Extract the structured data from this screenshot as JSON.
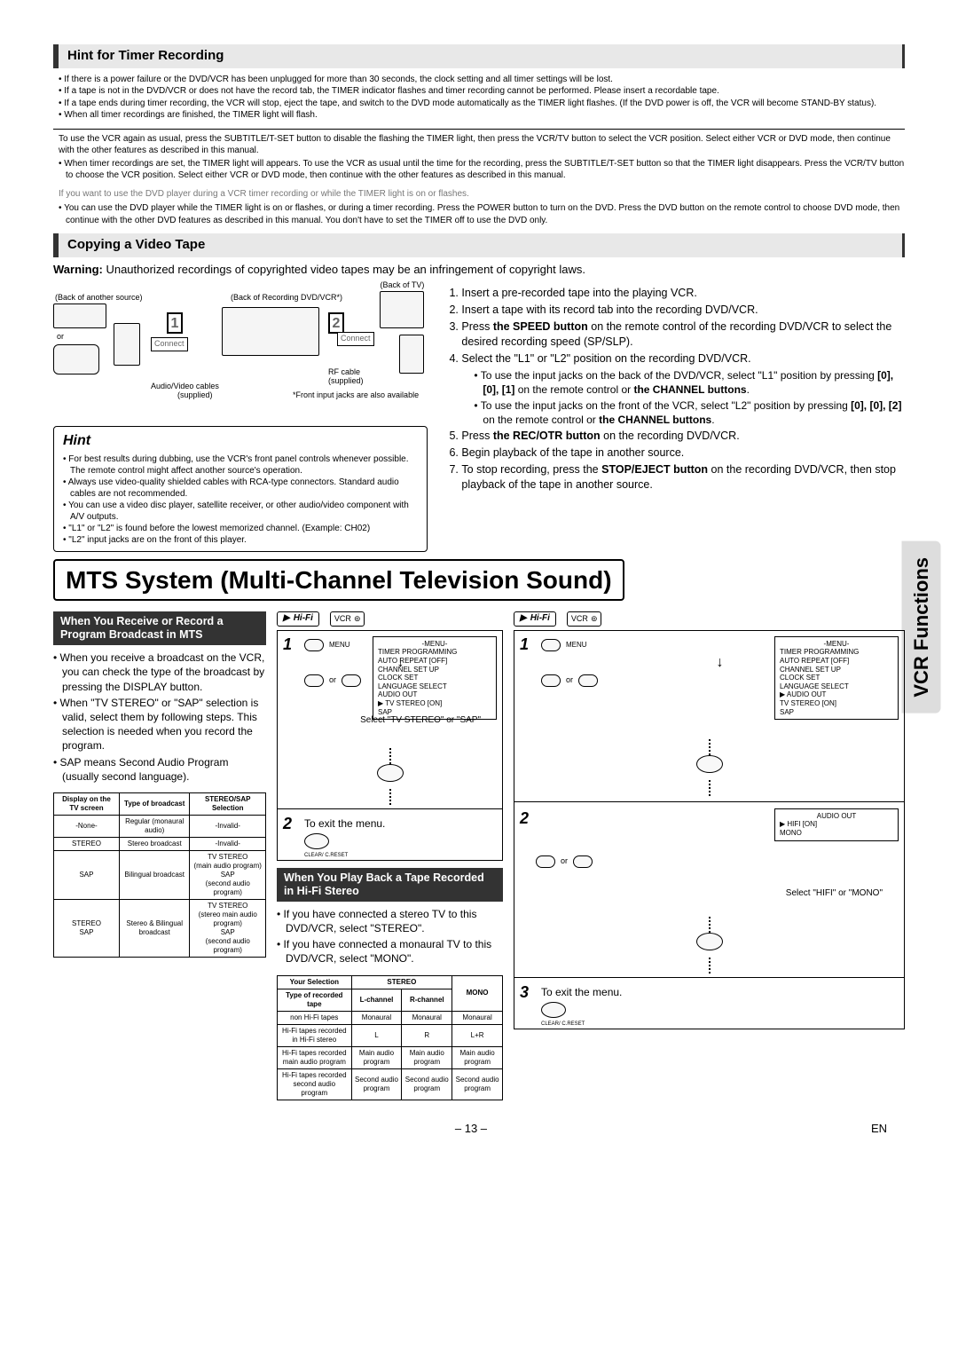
{
  "page_number": "– 13 –",
  "lang_code": "EN",
  "sidebar_tab": "VCR Functions",
  "timer": {
    "header": "Hint for Timer Recording",
    "bullets": [
      "If there is a power failure or the DVD/VCR has been unplugged for more than 30 seconds, the clock setting and all timer settings will be lost.",
      "If a tape is not in the DVD/VCR or does not have the record tab, the TIMER indicator flashes and timer recording cannot be performed. Please insert a recordable tape.",
      "If a tape ends during timer recording, the VCR will stop, eject the tape, and switch to the DVD mode automatically as the TIMER light flashes. (If the DVD power is off, the VCR will become STAND-BY status).",
      "When all timer recordings are finished, the TIMER light will flash."
    ],
    "para1": "To use the VCR again as usual, press the SUBTITLE/T-SET button to disable the flashing the TIMER light, then press the VCR/TV button to select the VCR position. Select either VCR or DVD mode, then continue with the other features as described in this manual.",
    "bullets2": [
      "When timer recordings are set, the TIMER light will appears. To use the VCR as usual until the time for the recording, press the SUBTITLE/T-SET button so that the TIMER light disappears. Press the VCR/TV button to choose the VCR position. Select either VCR or DVD mode, then continue with the other features as described in this manual."
    ],
    "gray_note": "If you want to use the DVD player during a VCR timer recording or while the TIMER light is on or flashes.",
    "bullets3": [
      "You can use the DVD player while the TIMER light is on or flashes, or during a timer recording. Press the POWER button to turn on the DVD. Press the DVD button on the remote control to choose DVD mode, then continue with the other DVD features as described in this manual. You don't have to set the TIMER off to use the DVD only."
    ]
  },
  "copying": {
    "header": "Copying a Video Tape",
    "warning_label": "Warning:",
    "warning_text": " Unauthorized recordings of copyrighted video tapes may be an infringement of copyright laws.",
    "diagram": {
      "back_source": "(Back of another source)",
      "back_rec": "(Back of Recording DVD/VCR*)",
      "back_tv": "(Back of TV)",
      "or": "or",
      "connect": "Connect",
      "av_cables": "Audio/Video cables",
      "supplied": "(supplied)",
      "rf_cable": "RF cable",
      "front_note": "*Front input jacks are also available"
    },
    "steps_html": [
      "Insert a pre-recorded tape into the playing VCR.",
      "Insert a tape with its record tab into the recording DVD/VCR.",
      "Press <b>the SPEED button</b> on the remote control of the recording DVD/VCR to select the desired recording speed (SP/SLP).",
      "Select the \"L1\" or \"L2\" position on the recording DVD/VCR.",
      "Press <b>the REC/OTR button</b> on the recording DVD/VCR.",
      "Begin playback of the tape in another source.",
      "To stop recording, press the <b>STOP/EJECT button</b> on the recording DVD/VCR, then stop playback of the tape in another source."
    ],
    "sub4": [
      "To use the input jacks on the back of the DVD/VCR, select \"L1\" position by pressing <b>[0], [0], [1]</b> on the remote control or <b>the CHANNEL buttons</b>.",
      "To use the input jacks on the front of the VCR, select \"L2\" position by pressing <b>[0], [0], [2]</b> on the remote control or <b>the CHANNEL buttons</b>."
    ],
    "hint_header": "Hint",
    "hint_bullets": [
      "For best results during dubbing, use the VCR's front panel controls whenever possible. The remote control might affect another source's operation.",
      "Always use video-quality shielded cables with RCA-type connectors. Standard audio cables are not recommended.",
      "You can use a video disc player, satellite receiver, or other audio/video component with A/V outputs.",
      "\"L1\" or \"L2\" is found before the lowest memorized channel.  (Example: CH02)",
      "\"L2\" input jacks are on the front of this player."
    ]
  },
  "mts": {
    "title": "MTS System (Multi-Channel Television Sound)",
    "sub1_header": "When You Receive or Record a Program Broadcast in MTS",
    "sub1_bullets": [
      "When you receive a broadcast on the VCR, you can check the type of the broadcast by pressing the DISPLAY button.",
      "When \"TV STEREO\" or \"SAP\" selection is valid, select them by following steps. This selection is needed when you record the program.",
      "SAP means Second Audio Program (usually second language)."
    ],
    "table1": {
      "headers": [
        "Display on the TV screen",
        "Type of broadcast",
        "STEREO/SAP Selection"
      ],
      "rows": [
        [
          "-None-",
          "Regular (monaural audio)",
          "-Invalid-"
        ],
        [
          "STEREO",
          "Stereo broadcast",
          "-Invalid-"
        ],
        [
          "SAP",
          "Bilingual broadcast",
          "TV STEREO\n(main audio program)\nSAP\n(second audio program)"
        ],
        [
          "STEREO\nSAP",
          "Stereo & Bilingual broadcast",
          "TV STEREO\n(stereo main audio program)\nSAP\n(second audio program)"
        ]
      ]
    },
    "proc1": {
      "menu_title": "-MENU-",
      "menu_items": [
        "TIMER PROGRAMMING",
        "AUTO REPEAT   [OFF]",
        "CHANNEL SET UP",
        "CLOCK SET",
        "LANGUAGE SELECT",
        "AUDIO OUT",
        "▶ TV STEREO     [ON]",
        "   SAP"
      ],
      "select_text": "Select \"TV STEREO\" or \"SAP\"",
      "exit_text": "To exit the menu."
    },
    "sub2_header": "When You Play Back a Tape Recorded in Hi-Fi Stereo",
    "sub2_bullets": [
      "If you have connected a stereo TV to this DVD/VCR, select \"STEREO\".",
      "If you have connected a monaural TV to this DVD/VCR, select \"MONO\"."
    ],
    "table2": {
      "headers_row1": [
        "Your Selection",
        "STEREO",
        "",
        "MONO"
      ],
      "headers_row2": [
        "Type of recorded tape",
        "L-channel",
        "R-channel",
        ""
      ],
      "rows": [
        [
          "non Hi-Fi tapes",
          "Monaural",
          "Monaural",
          "Monaural"
        ],
        [
          "Hi-Fi tapes recorded in Hi-Fi stereo",
          "L",
          "R",
          "L+R"
        ],
        [
          "Hi-Fi tapes recorded main audio program",
          "Main audio program",
          "Main audio program",
          "Main audio program"
        ],
        [
          "Hi-Fi tapes recorded second audio program",
          "Second audio program",
          "Second audio program",
          "Second audio program"
        ]
      ]
    },
    "proc2": {
      "menu_title": "-MENU-",
      "menu_items": [
        "TIMER PROGRAMMING",
        "AUTO REPEAT   [OFF]",
        "CHANNEL SET UP",
        "CLOCK SET",
        "LANGUAGE SELECT",
        "▶ AUDIO OUT",
        "   TV STEREO    [ON]",
        "   SAP"
      ],
      "menu2_title": "AUDIO OUT",
      "menu2_items": [
        "▶ HIFI            [ON]",
        "   MONO"
      ],
      "select_text": "Select \"HIFI\" or \"MONO\"",
      "exit_text": "To exit the menu."
    },
    "badges": {
      "hifi": "Hi-Fi",
      "vcr_cc": "VCR"
    },
    "labels": {
      "menu": "MENU",
      "or": "or",
      "clear": "CLEAR/\nC.RESET"
    }
  }
}
